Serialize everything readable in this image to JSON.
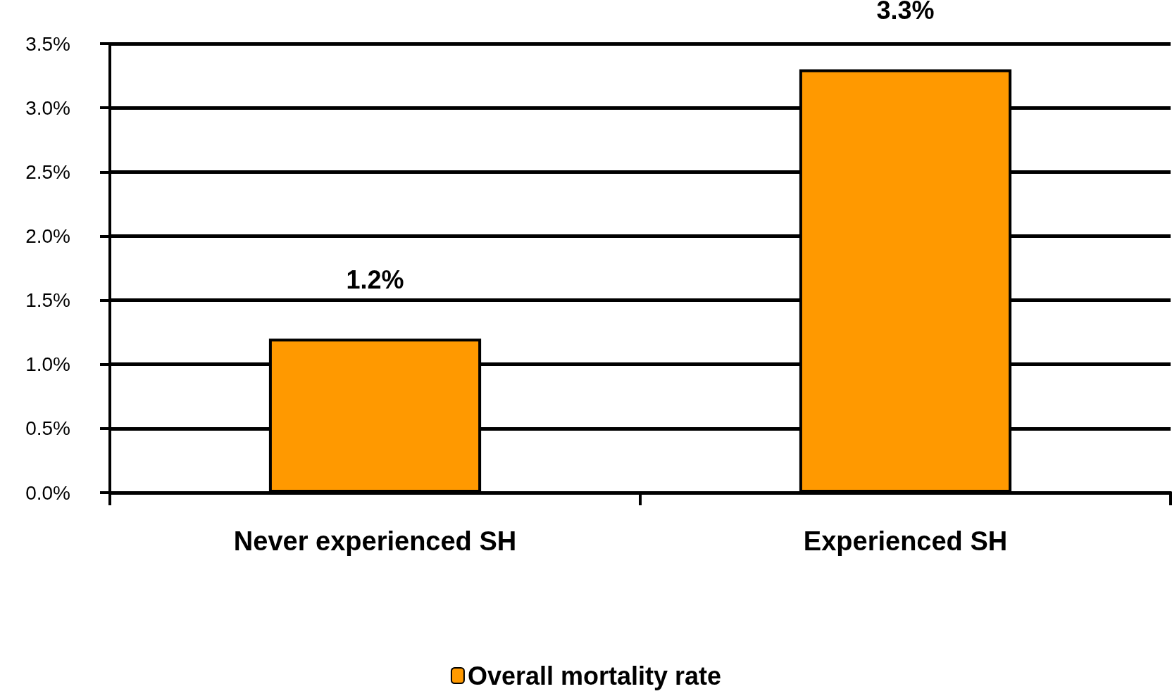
{
  "chart_data": {
    "type": "bar",
    "categories": [
      "Never experienced SH",
      "Experienced SH"
    ],
    "series": [
      {
        "name": "Overall mortality rate",
        "color": "#ff9900",
        "values": [
          1.2,
          3.3
        ],
        "value_labels": [
          "1.2%",
          "3.3%"
        ]
      }
    ],
    "ylim": [
      0,
      3.5
    ],
    "yticks": [
      {
        "value": 0,
        "label": "0.0%"
      },
      {
        "value": 0.5,
        "label": "0.5%"
      },
      {
        "value": 1,
        "label": "1.0%"
      },
      {
        "value": 1.5,
        "label": "1.5%"
      },
      {
        "value": 2,
        "label": "2.0%"
      },
      {
        "value": 2.5,
        "label": "2.5%"
      },
      {
        "value": 3,
        "label": "3.0%"
      },
      {
        "value": 3.5,
        "label": "3.5%"
      }
    ],
    "grid": "y",
    "legend": "bottom"
  }
}
